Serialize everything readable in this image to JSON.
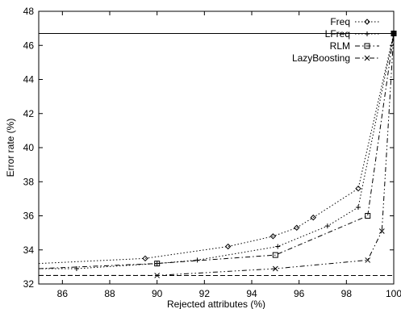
{
  "chart_data": {
    "type": "line",
    "title": "",
    "xlabel": "Rejected attributes (%)",
    "ylabel": "Error rate (%)",
    "xlim": [
      85,
      100
    ],
    "ylim": [
      32,
      48
    ],
    "xticks": [
      "86",
      "88",
      "90",
      "92",
      "94",
      "96",
      "98",
      "100"
    ],
    "yticks": [
      "32",
      "34",
      "36",
      "38",
      "40",
      "42",
      "44",
      "46",
      "48"
    ],
    "legend_position": "top-right",
    "grid": false,
    "series": [
      {
        "name": "Freq",
        "marker": "diamond",
        "x": [
          85,
          89.5,
          93,
          94.9,
          95.9,
          96.6,
          98.5,
          100
        ],
        "y": [
          33.2,
          33.5,
          34.2,
          34.8,
          35.3,
          35.9,
          37.6,
          46.7
        ]
      },
      {
        "name": "LFreq",
        "marker": "plus",
        "x": [
          85,
          86.6,
          90,
          91.7,
          95.1,
          97.2,
          98.5,
          100
        ],
        "y": [
          32.9,
          32.9,
          33.2,
          33.4,
          34.2,
          35.4,
          36.5,
          46.7
        ]
      },
      {
        "name": "RLM",
        "marker": "square",
        "x": [
          85,
          90,
          95,
          98.9,
          100
        ],
        "y": [
          32.9,
          33.2,
          33.7,
          36.0,
          46.7
        ]
      },
      {
        "name": "LazyBoosting",
        "marker": "x",
        "x": [
          85,
          90,
          95,
          98.9,
          99.5,
          100
        ],
        "y": [
          32.5,
          32.5,
          32.9,
          33.4,
          35.1,
          46.7
        ]
      }
    ]
  }
}
